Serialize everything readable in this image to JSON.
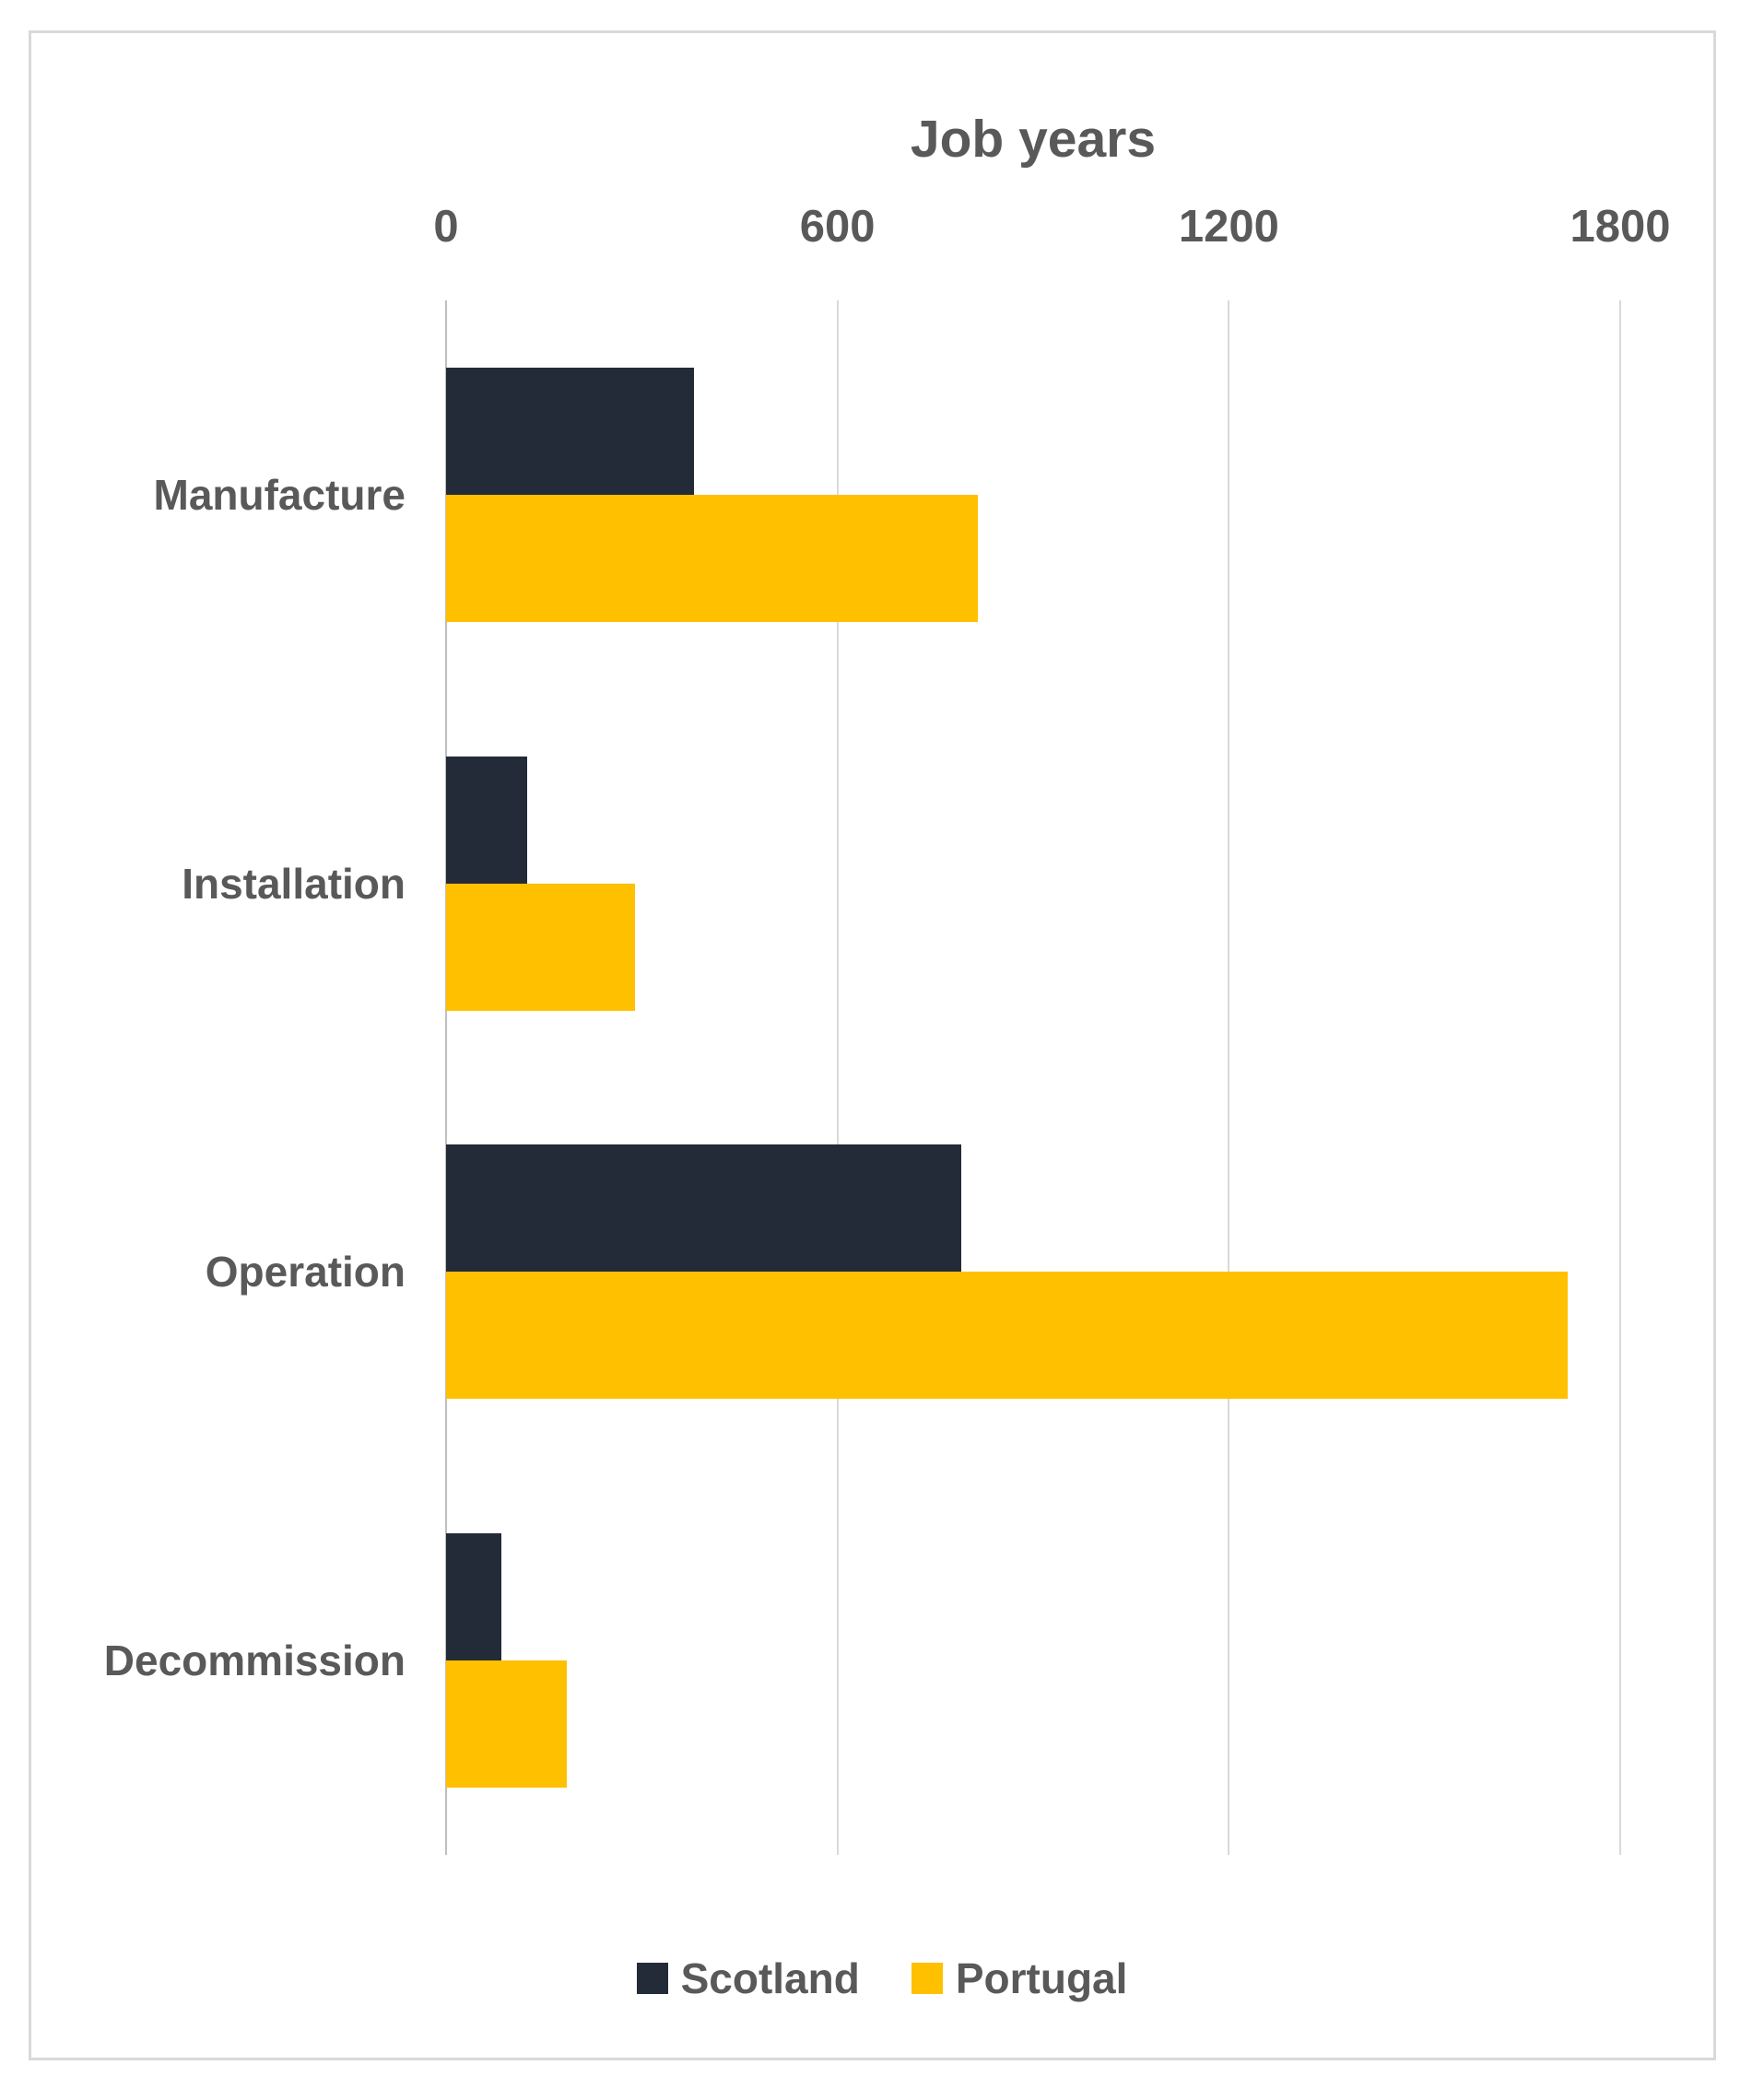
{
  "chart": {
    "title": "Job years"
  },
  "chart_data": {
    "type": "bar",
    "orientation": "horizontal",
    "title": "Job years",
    "categories": [
      "Manufacture",
      "Installation",
      "Operation",
      "Decommission"
    ],
    "series": [
      {
        "name": "Scotland",
        "color": "#232a38",
        "values": [
          380,
          125,
          790,
          85
        ]
      },
      {
        "name": "Portugal",
        "color": "#ffc000",
        "values": [
          815,
          290,
          1720,
          185
        ]
      }
    ],
    "x_axis": {
      "min": 0,
      "max": 1800,
      "ticks": [
        0,
        600,
        1200,
        1800
      ],
      "tick_labels": [
        "0",
        "600",
        "1200",
        "1800"
      ]
    },
    "grid": true,
    "legend_position": "bottom",
    "colors": {
      "gridline": "#d9d9d9",
      "axis_line": "#bfbfbf",
      "text": "#595959",
      "frame_border": "#d9d9d9",
      "background": "#ffffff"
    }
  }
}
